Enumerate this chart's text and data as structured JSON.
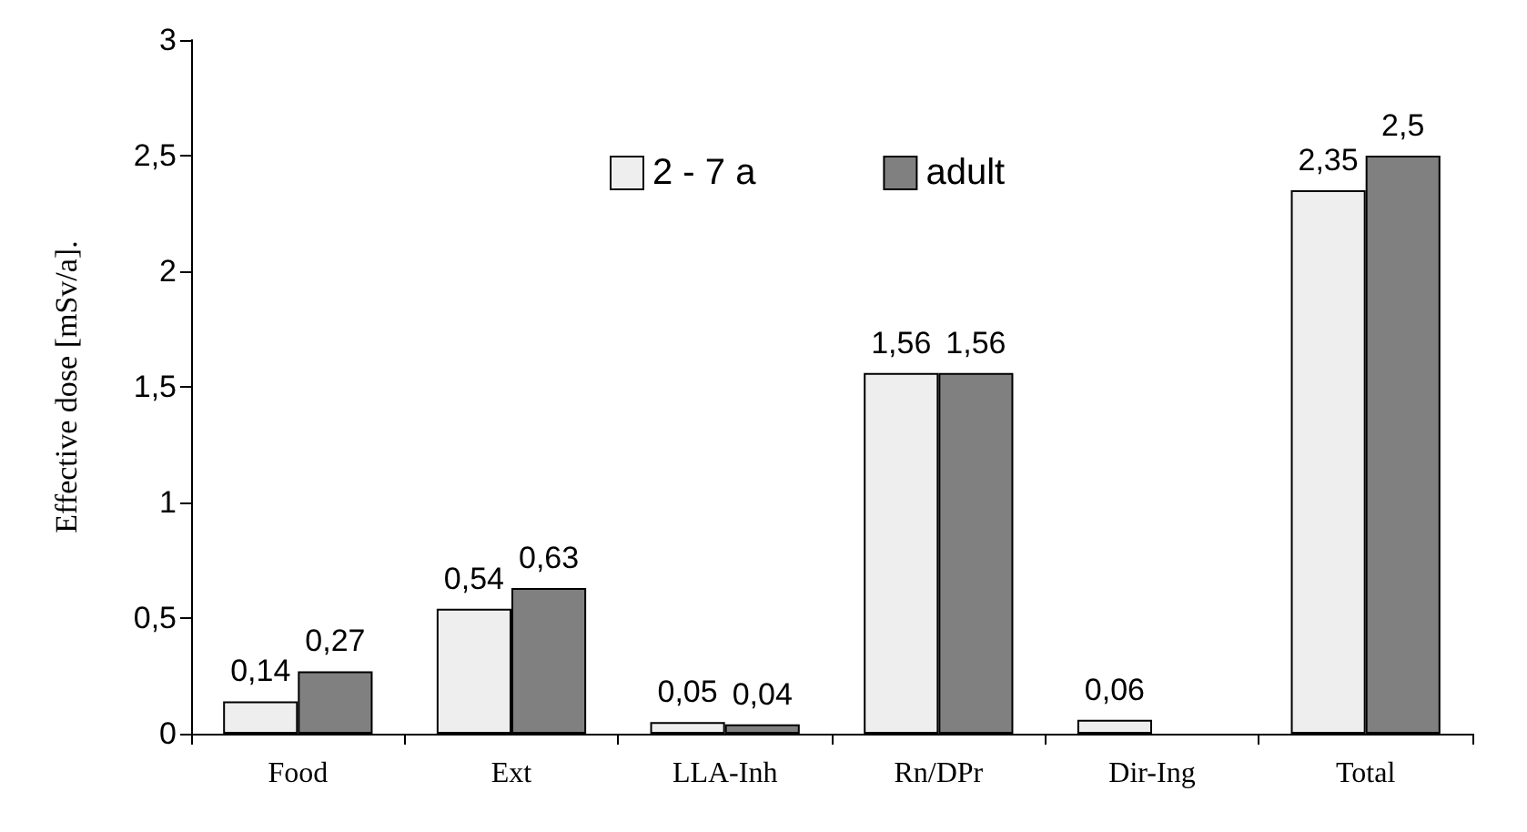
{
  "chart_data": {
    "type": "bar",
    "ylabel": "Effective dose [mSv/a].",
    "categories": [
      "Food",
      "Ext",
      "LLA-Inh",
      "Rn/DPr",
      "Dir-Ing",
      "Total"
    ],
    "series": [
      {
        "name": "2 - 7 a",
        "color": "#eeeeee",
        "values": [
          0.14,
          0.54,
          0.05,
          1.56,
          0.06,
          2.35
        ],
        "value_labels": [
          "0,14",
          "0,54",
          "0,05",
          "1,56",
          "0,06",
          "2,35"
        ]
      },
      {
        "name": "adult",
        "color": "#808080",
        "values": [
          0.27,
          0.63,
          0.04,
          1.56,
          null,
          2.5
        ],
        "value_labels": [
          "0,27",
          "0,63",
          "0,04",
          "1,56",
          null,
          "2,5"
        ]
      }
    ],
    "ylim": [
      0,
      3
    ],
    "yticks": [
      0,
      {
        "value": 0.5,
        "label": "0,5"
      },
      1,
      {
        "value": 1.5,
        "label": "1,5"
      },
      2,
      {
        "value": 2.5,
        "label": "2,5"
      },
      3
    ],
    "grid": false,
    "legend": "top"
  }
}
